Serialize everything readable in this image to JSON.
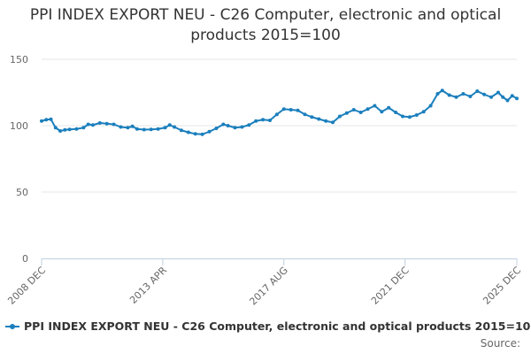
{
  "chart_data": {
    "type": "line",
    "title": "PPI INDEX EXPORT NEU - C26 Computer, electronic and optical products 2015=100",
    "xlabel": "",
    "ylabel": "",
    "ylim": [
      0,
      150
    ],
    "yticks": [
      0,
      50,
      100,
      150
    ],
    "xtick_labels": [
      "2008 DEC",
      "2013 APR",
      "2017 AUG",
      "2021 DEC",
      "2025 DEC"
    ],
    "xtick_dates": [
      "2008-12",
      "2013-04",
      "2017-08",
      "2021-12",
      "2025-12"
    ],
    "x_range": [
      "2008-12",
      "2025-12"
    ],
    "grid": true,
    "legend_position": "bottom",
    "series": [
      {
        "name": "PPI INDEX EXPORT NEU - C26 Computer, electronic and optical products 2015=100",
        "color": "#1b7fbd",
        "points": [
          [
            "2008-12",
            103.5
          ],
          [
            "2009-02",
            104.5
          ],
          [
            "2009-04",
            104.8
          ],
          [
            "2009-06",
            98.5
          ],
          [
            "2009-08",
            96.0
          ],
          [
            "2009-10",
            96.8
          ],
          [
            "2009-12",
            97.2
          ],
          [
            "2010-03",
            97.5
          ],
          [
            "2010-06",
            98.5
          ],
          [
            "2010-08",
            101.0
          ],
          [
            "2010-10",
            100.5
          ],
          [
            "2011-01",
            102.0
          ],
          [
            "2011-04",
            101.5
          ],
          [
            "2011-07",
            101.0
          ],
          [
            "2011-10",
            99.0
          ],
          [
            "2012-01",
            98.5
          ],
          [
            "2012-03",
            99.5
          ],
          [
            "2012-05",
            97.5
          ],
          [
            "2012-08",
            97.0
          ],
          [
            "2012-11",
            97.2
          ],
          [
            "2013-02",
            97.5
          ],
          [
            "2013-05",
            98.5
          ],
          [
            "2013-07",
            100.5
          ],
          [
            "2013-09",
            99.0
          ],
          [
            "2013-12",
            96.5
          ],
          [
            "2014-03",
            95.0
          ],
          [
            "2014-06",
            93.8
          ],
          [
            "2014-09",
            93.5
          ],
          [
            "2014-12",
            95.5
          ],
          [
            "2015-03",
            98.0
          ],
          [
            "2015-06",
            101.0
          ],
          [
            "2015-08",
            100.0
          ],
          [
            "2015-11",
            98.5
          ],
          [
            "2016-02",
            99.0
          ],
          [
            "2016-05",
            100.5
          ],
          [
            "2016-08",
            103.5
          ],
          [
            "2016-11",
            104.5
          ],
          [
            "2017-02",
            104.0
          ],
          [
            "2017-05",
            108.5
          ],
          [
            "2017-08",
            112.5
          ],
          [
            "2017-11",
            112.0
          ],
          [
            "2018-02",
            111.5
          ],
          [
            "2018-05",
            108.5
          ],
          [
            "2018-08",
            106.5
          ],
          [
            "2018-11",
            105.0
          ],
          [
            "2019-02",
            103.5
          ],
          [
            "2019-05",
            102.5
          ],
          [
            "2019-08",
            107.0
          ],
          [
            "2019-11",
            109.5
          ],
          [
            "2020-02",
            112.0
          ],
          [
            "2020-05",
            110.0
          ],
          [
            "2020-08",
            112.5
          ],
          [
            "2020-11",
            115.0
          ],
          [
            "2021-02",
            110.5
          ],
          [
            "2021-05",
            113.5
          ],
          [
            "2021-08",
            110.0
          ],
          [
            "2021-11",
            107.0
          ],
          [
            "2022-02",
            106.5
          ],
          [
            "2022-05",
            108.0
          ],
          [
            "2022-08",
            110.5
          ],
          [
            "2022-11",
            115.0
          ],
          [
            "2023-02",
            124.0
          ],
          [
            "2023-04",
            126.5
          ],
          [
            "2023-07",
            123.0
          ],
          [
            "2023-10",
            121.5
          ],
          [
            "2024-01",
            124.0
          ],
          [
            "2024-04",
            122.0
          ],
          [
            "2024-07",
            126.0
          ],
          [
            "2024-10",
            123.5
          ],
          [
            "2025-01",
            121.5
          ],
          [
            "2025-04",
            125.0
          ],
          [
            "2025-06",
            121.5
          ],
          [
            "2025-08",
            119.0
          ],
          [
            "2025-10",
            122.5
          ],
          [
            "2025-12",
            120.5
          ]
        ]
      }
    ]
  },
  "source_label": "Source:"
}
